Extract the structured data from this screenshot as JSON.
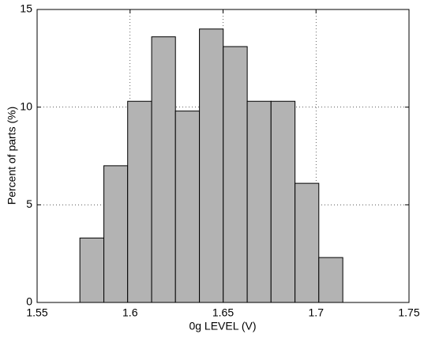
{
  "chart_data": {
    "type": "histogram",
    "xlabel": "0g LEVEL (V)",
    "ylabel": "Percent of parts (%)",
    "bins": [
      1.573,
      1.5859,
      1.5987,
      1.6116,
      1.6244,
      1.6373,
      1.6501,
      1.663,
      1.6758,
      1.6887,
      1.7015,
      1.7144
    ],
    "values": [
      3.3,
      7.0,
      10.3,
      13.6,
      9.8,
      14.0,
      13.1,
      10.3,
      10.3,
      6.1,
      2.3
    ],
    "color": "#b3b3b3",
    "xlim": [
      1.55,
      1.75
    ],
    "xticks": [
      1.55,
      1.6,
      1.65,
      1.7,
      1.75
    ],
    "ylim": [
      0,
      15
    ],
    "yticks": [
      0,
      5,
      10,
      15
    ],
    "grid": true
  }
}
